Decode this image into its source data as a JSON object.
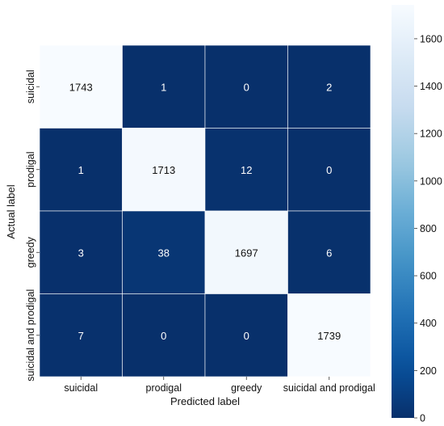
{
  "chart_data": {
    "type": "heatmap",
    "xlabel": "Predicted label",
    "ylabel": "Actual label",
    "x_categories": [
      "suicidal",
      "prodigal",
      "greedy",
      "suicidal and prodigal"
    ],
    "y_categories": [
      "suicidal",
      "prodigal",
      "greedy",
      "suicidal and prodigal"
    ],
    "values": [
      [
        1743,
        1,
        0,
        2
      ],
      [
        1,
        1713,
        12,
        0
      ],
      [
        3,
        38,
        1697,
        6
      ],
      [
        7,
        0,
        0,
        1739
      ]
    ],
    "colormap": "Blues_r",
    "color_low": "#08306b",
    "color_high": "#f7fbff",
    "colorbar": {
      "min": 0,
      "max": 1743,
      "ticks": [
        0,
        200,
        400,
        600,
        800,
        1000,
        1200,
        1400,
        1600
      ]
    }
  }
}
